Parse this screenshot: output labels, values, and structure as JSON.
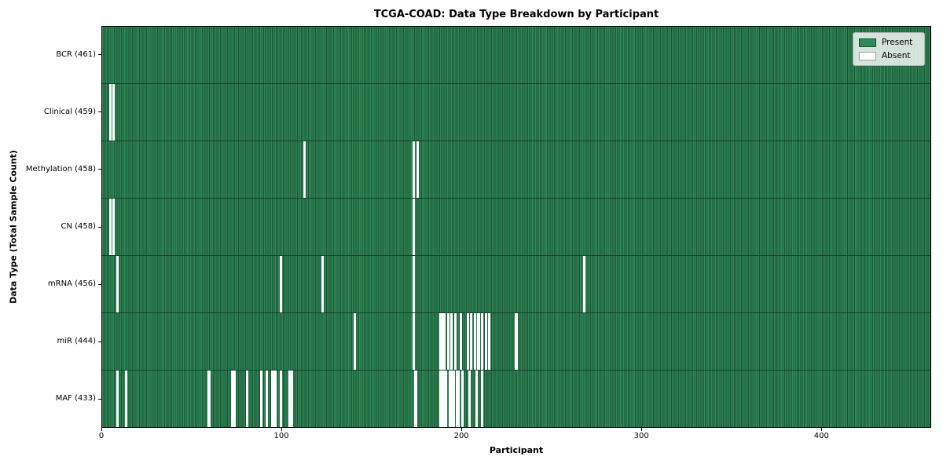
{
  "title": "TCGA-COAD: Data Type Breakdown by Participant",
  "xlabel": "Participant",
  "ylabel": "Data Type (Total Sample Count)",
  "legend": {
    "present_label": "Present",
    "absent_label": "Absent",
    "position": "upper right"
  },
  "colors": {
    "present": "#2e8b57",
    "cell_edge": "#1c5136",
    "row_separator": "#17402a",
    "absent": "#ffffff",
    "axis": "#000000",
    "legend_bg": "rgba(255,255,255,0.8)",
    "legend_border": "#b0b0b0",
    "absent_swatch_border": "#a0a0a0"
  },
  "chart_data": {
    "type": "heatmap",
    "x_axis_label": "Participant",
    "y_axis_label": "Data Type (Total Sample Count)",
    "n_participants": 461,
    "xlim": [
      0,
      461
    ],
    "x_ticks": [
      0,
      100,
      200,
      300,
      400
    ],
    "legend_entries": [
      "Present",
      "Absent"
    ],
    "value_encoding": {
      "present": 1,
      "absent": 0
    },
    "rows": [
      {
        "name": "BCR",
        "label": "BCR (461)",
        "present_count": 461,
        "absent_participants": []
      },
      {
        "name": "Clinical",
        "label": "Clinical (459)",
        "present_count": 459,
        "absent_participants": [
          4,
          6
        ]
      },
      {
        "name": "Methylation",
        "label": "Methylation (458)",
        "present_count": 458,
        "absent_participants": [
          112,
          173,
          175
        ]
      },
      {
        "name": "CN",
        "label": "CN (458)",
        "present_count": 458,
        "absent_participants": [
          4,
          6,
          173
        ]
      },
      {
        "name": "mRNA",
        "label": "mRNA (456)",
        "present_count": 456,
        "absent_participants": [
          8,
          99,
          122,
          173,
          268
        ]
      },
      {
        "name": "miR",
        "label": "miR (444)",
        "present_count": 444,
        "absent_participants": [
          140,
          173,
          188,
          189,
          190,
          192,
          194,
          196,
          199,
          203,
          205,
          207,
          209,
          211,
          213,
          215,
          230
        ]
      },
      {
        "name": "MAF",
        "label": "MAF (433)",
        "present_count": 433,
        "absent_participants": [
          8,
          13,
          59,
          72,
          73,
          80,
          88,
          91,
          94,
          95,
          96,
          99,
          104,
          105,
          174,
          188,
          189,
          190,
          191,
          193,
          194,
          195,
          197,
          198,
          200,
          204,
          208,
          211
        ]
      }
    ]
  }
}
